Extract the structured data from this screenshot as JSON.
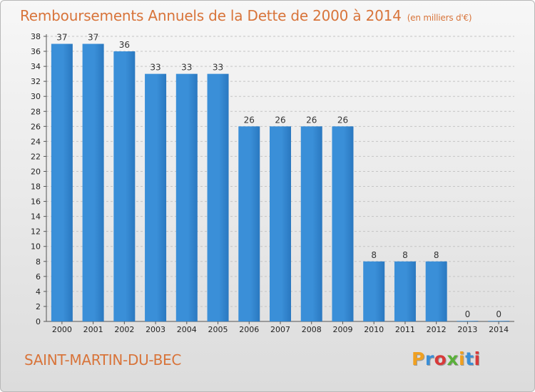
{
  "chart_data": {
    "type": "bar",
    "title": "Remboursements Annuels de la Dette de 2000 à 2014",
    "unit_label": "(en milliers d'€)",
    "categories": [
      "2000",
      "2001",
      "2002",
      "2003",
      "2004",
      "2005",
      "2006",
      "2007",
      "2008",
      "2009",
      "2010",
      "2011",
      "2012",
      "2013",
      "2014"
    ],
    "values": [
      37,
      37,
      36,
      33,
      33,
      33,
      26,
      26,
      26,
      26,
      8,
      8,
      8,
      0,
      0
    ],
    "xlabel": "",
    "ylabel": "",
    "ylim": [
      0,
      38
    ],
    "ytick_step": 2,
    "grid": "horizontal",
    "bar_color": "#3a8fd8",
    "bar_color_dark": "#2a78c0"
  },
  "commune": "SAINT-MARTIN-DU-BEC",
  "brand": {
    "letters": [
      "P",
      "r",
      "o",
      "x",
      "i",
      "t",
      "i"
    ]
  }
}
